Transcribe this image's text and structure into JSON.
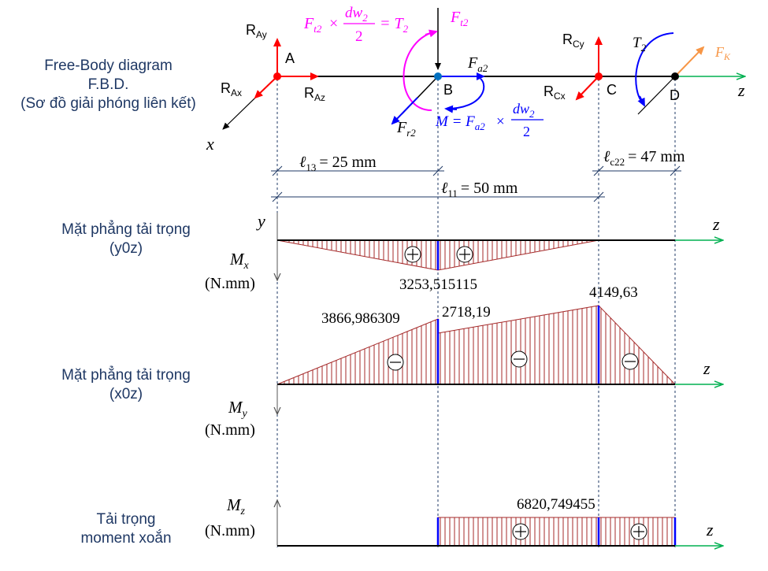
{
  "fbd": {
    "title_lines": [
      "Free-Body diagram",
      "F.B.D.",
      "(Sơ đồ giải phóng liên kết)"
    ],
    "points": {
      "A": "A",
      "B": "B",
      "C": "C",
      "D": "D"
    },
    "forces": {
      "R_Ay": "Ay",
      "R_Ax": "Ax",
      "R_Az": "Az",
      "R_Cy": "Cy",
      "R_Cx": "Cx",
      "F_t2": "t2",
      "F_a2": "a2",
      "F_r2": "r2",
      "F_K": "K",
      "T2": "2"
    },
    "axes": {
      "x": "x",
      "z": "z",
      "y": "y"
    },
    "equations": {
      "eq1_left": "F",
      "eq1_left_sub": "t2",
      "eq1_num": "dw",
      "eq1_num_sub": "2",
      "eq1_den": "2",
      "eq1_right": "= T",
      "eq1_right_sub": "2",
      "eq2_left": "M = F",
      "eq2_left_sub": "a2",
      "eq2_num": "dw",
      "eq2_num_sub": "2",
      "eq2_den": "2"
    },
    "colors": {
      "point": "#ff0000",
      "reaction": "#ff0000",
      "axis": "#000000",
      "shaft": "#000000",
      "tangential": "#ff00ff",
      "moment_blue": "#0000ff",
      "coupling": "#f79646",
      "z_axis_green": "#00b050"
    }
  },
  "dimensions": {
    "l13": {
      "symbol": "ℓ",
      "sub": "13",
      "value": "= 25 mm"
    },
    "l11": {
      "symbol": "ℓ",
      "sub": "11",
      "value": "= 50 mm"
    },
    "lc22": {
      "symbol": "ℓ",
      "sub": "c22",
      "value": "= 47 mm"
    }
  },
  "diagrams": {
    "mx": {
      "plane_label": [
        "Mặt phẳng tải trọng",
        "(y0z)"
      ],
      "axis_label": "M",
      "axis_sub": "x",
      "unit": "(N.mm)",
      "peak_value": "3253,515115"
    },
    "my": {
      "plane_label": [
        "Mặt phẳng tải trọng",
        "(x0z)"
      ],
      "axis_label": "M",
      "axis_sub": "y",
      "unit": "(N.mm)",
      "values": {
        "b_left": "3866,986309",
        "b_right": "2718,19",
        "c": "4149,63"
      }
    },
    "mz": {
      "plane_label": [
        "Tải trọng",
        "moment xoắn"
      ],
      "axis_label": "M",
      "axis_sub": "z",
      "unit": "(N.mm)",
      "value": "6820,749455"
    },
    "fill_color": "#a52a2a",
    "edge_color": "#0000ff"
  }
}
